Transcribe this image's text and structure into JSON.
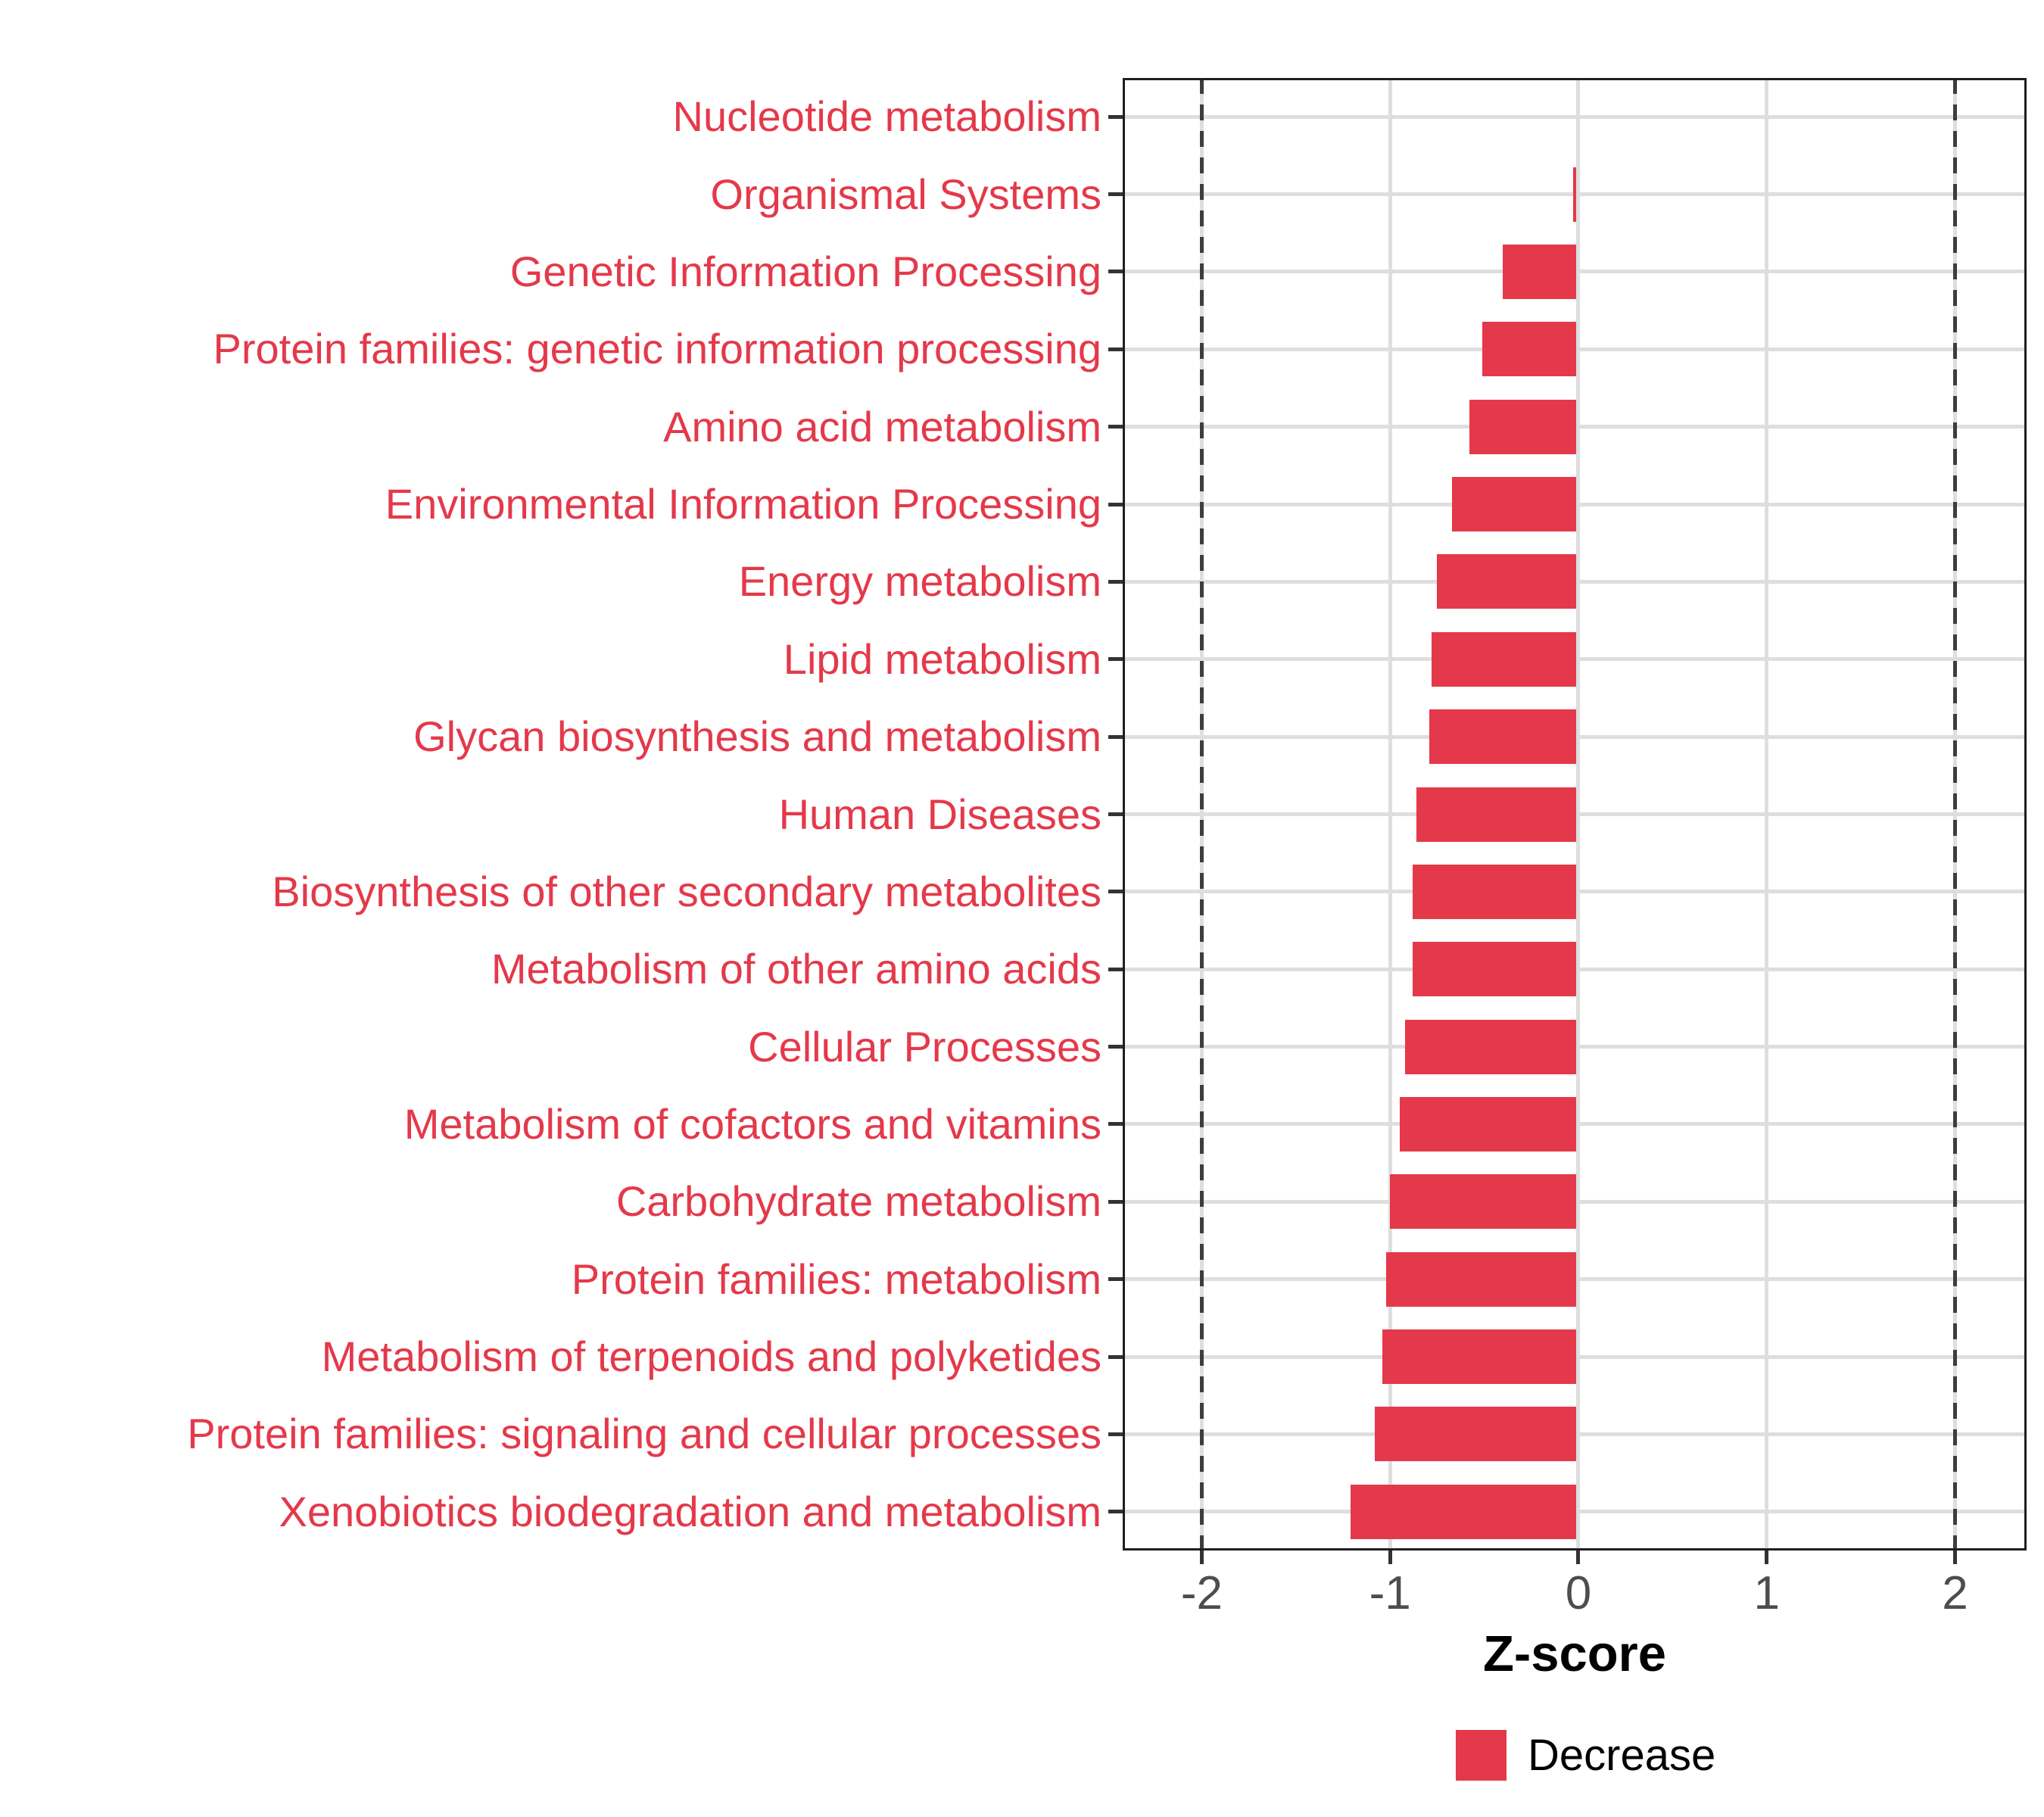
{
  "chart_data": {
    "type": "bar",
    "orientation": "horizontal",
    "title": "",
    "xlabel": "Z-score",
    "ylabel": "",
    "categories": [
      "Nucleotide metabolism",
      "Organismal Systems",
      "Genetic Information Processing",
      "Protein families: genetic information processing",
      "Amino acid metabolism",
      "Environmental Information Processing",
      "Energy metabolism",
      "Lipid metabolism",
      "Glycan biosynthesis and metabolism",
      "Human Diseases",
      "Biosynthesis of other secondary metabolites",
      "Metabolism of other amino acids",
      "Cellular Processes",
      "Metabolism of cofactors and vitamins",
      "Carbohydrate metabolism",
      "Protein families: metabolism",
      "Metabolism of terpenoids and polyketides",
      "Protein families: signaling and cellular processes",
      "Xenobiotics biodegradation and metabolism"
    ],
    "values": [
      0.0,
      -0.03,
      -0.4,
      -0.51,
      -0.58,
      -0.67,
      -0.75,
      -0.78,
      -0.79,
      -0.86,
      -0.88,
      -0.88,
      -0.92,
      -0.95,
      -1.0,
      -1.02,
      -1.04,
      -1.08,
      -1.21
    ],
    "series_name": "Decrease",
    "xlim": [
      -2.42,
      2.38
    ],
    "x_ticks": [
      {
        "value": -2,
        "label": "-2"
      },
      {
        "value": -1,
        "label": "-1"
      },
      {
        "value": 0,
        "label": "0"
      },
      {
        "value": 1,
        "label": "1"
      },
      {
        "value": 2,
        "label": "2"
      }
    ],
    "reference_lines": {
      "values": [
        -2,
        2
      ],
      "style": "dashed"
    },
    "grid": "major on",
    "legend": {
      "position": "bottom",
      "entries": [
        {
          "label": "Decrease",
          "color": "#e4394a"
        }
      ]
    },
    "colors": {
      "bar": "#e4394a",
      "category_label": "#e4394a",
      "axis_tick_label": "#4d4d4d",
      "axis_title": "#000000",
      "gridline": "#dedede",
      "reference_line": "#3d3d3d",
      "panel_border": "#1f1f1f",
      "tick_mark": "#333333",
      "background": "#ffffff"
    }
  }
}
